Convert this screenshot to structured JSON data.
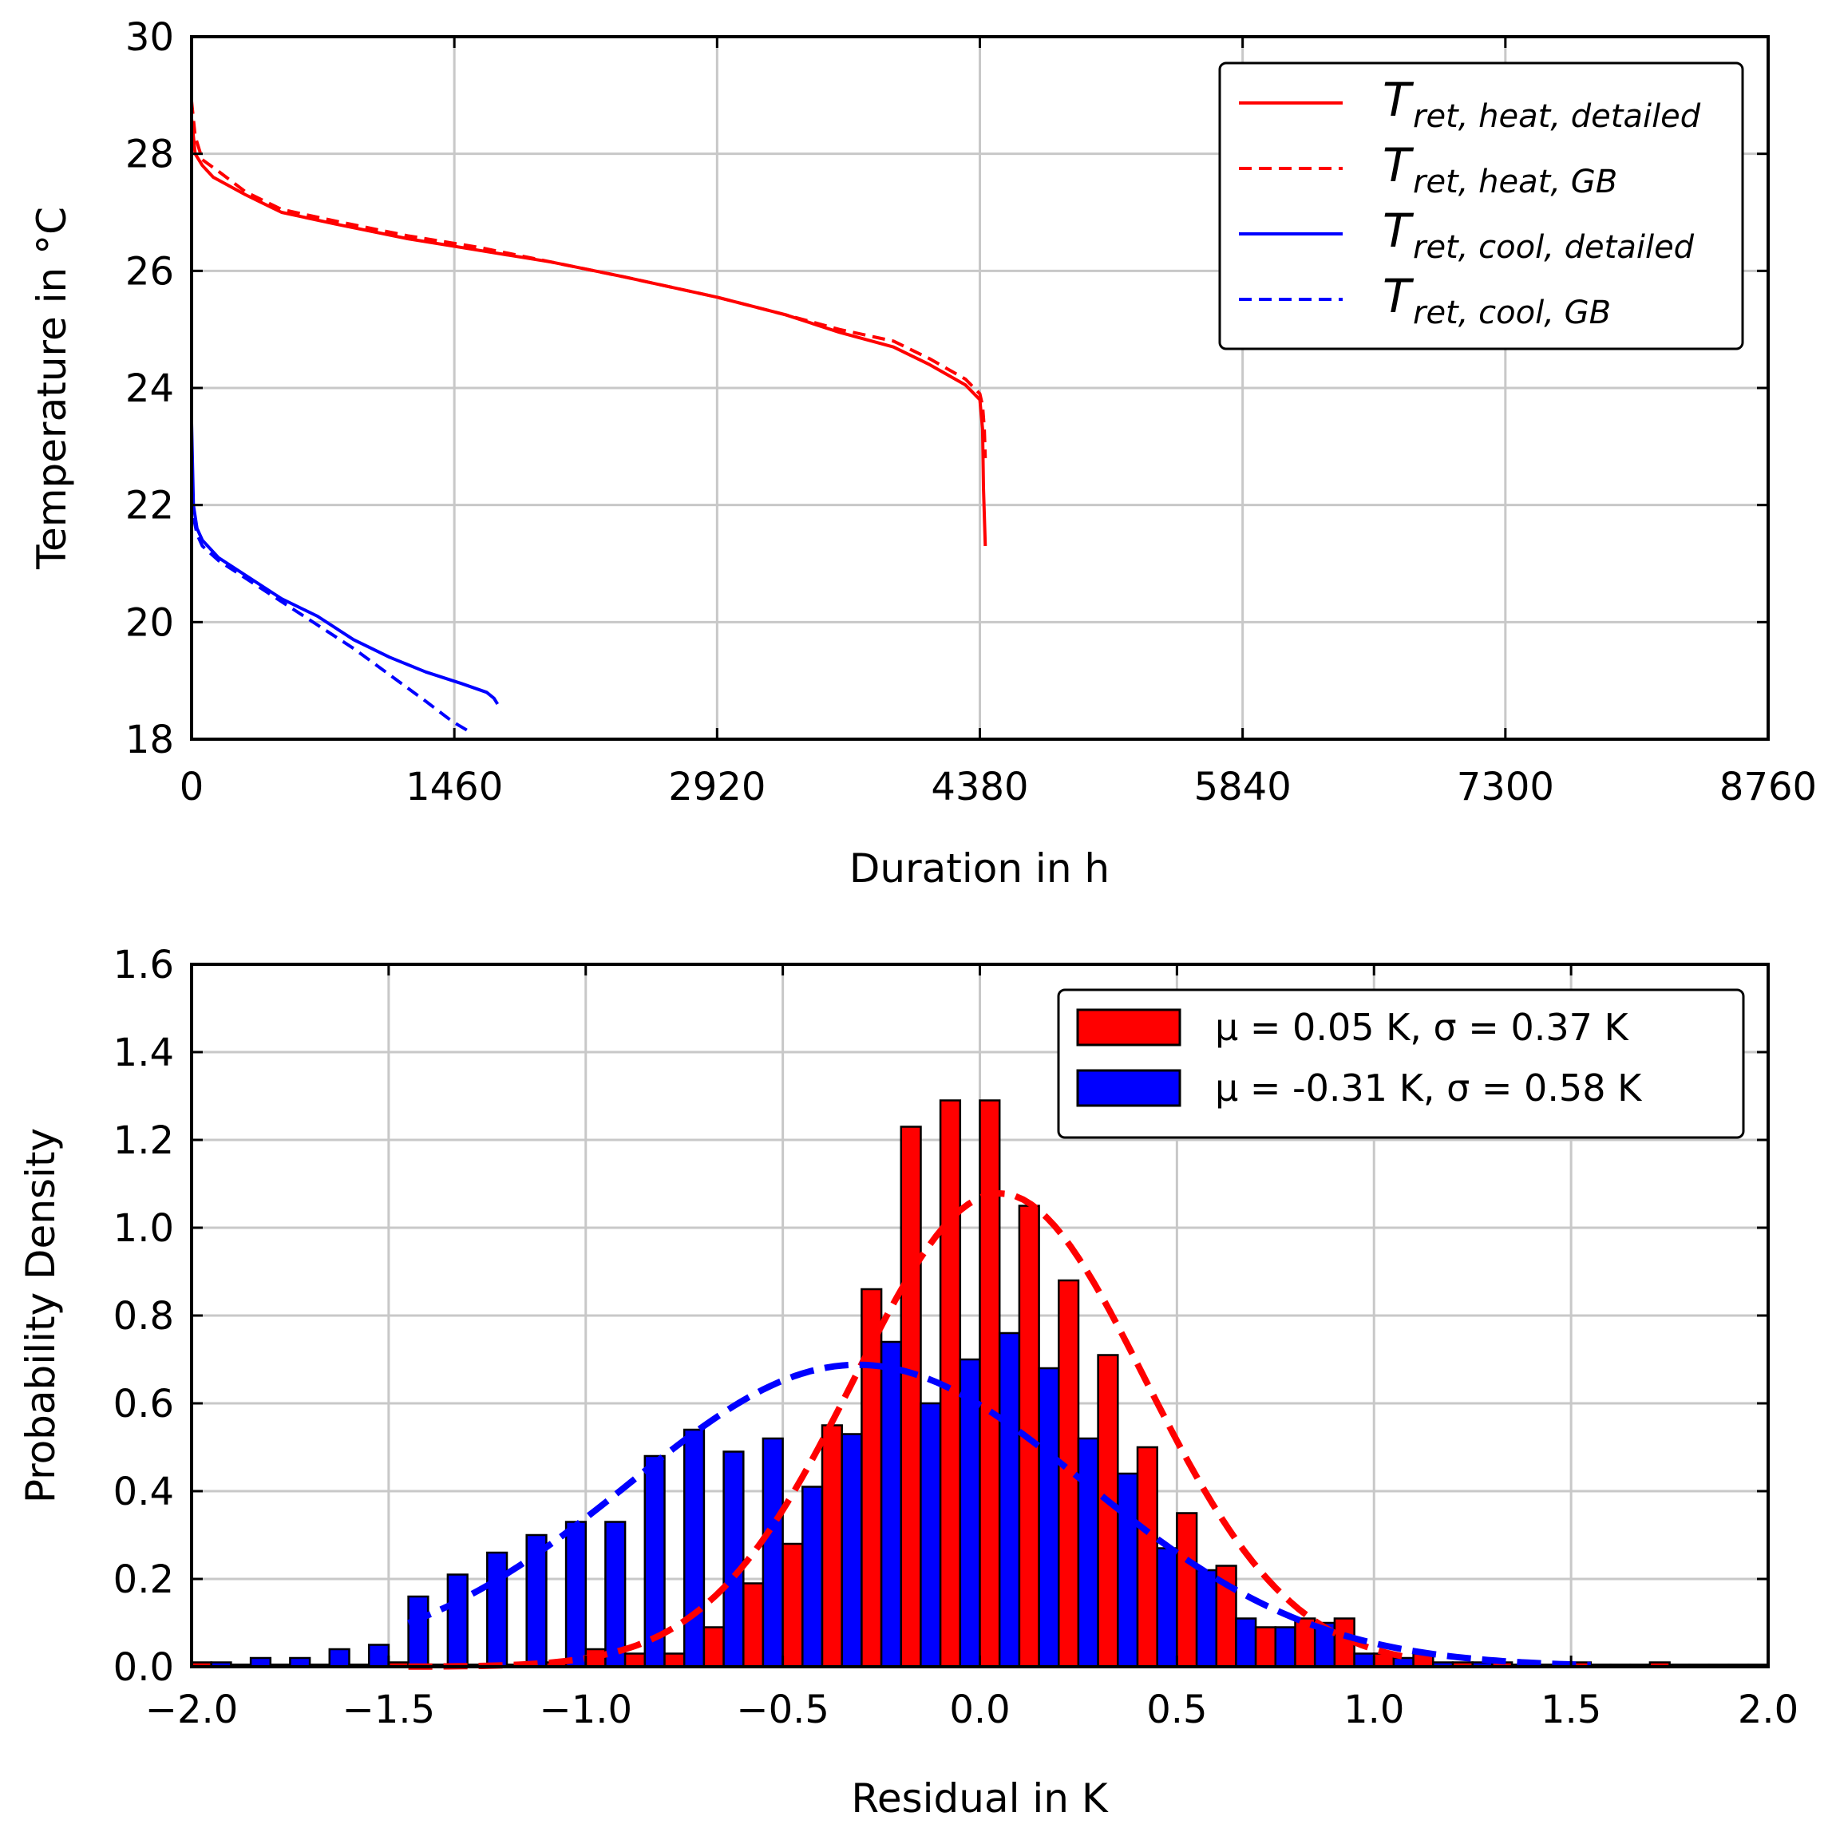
{
  "chart_data": [
    {
      "type": "line",
      "xlabel": "Duration in h",
      "ylabel": "Temperature in °C",
      "xlim": [
        0,
        8760
      ],
      "ylim": [
        18,
        30
      ],
      "xticks": [
        0,
        1460,
        2920,
        4380,
        5840,
        7300,
        8760
      ],
      "yticks": [
        18,
        20,
        22,
        24,
        26,
        28,
        30
      ],
      "grid": true,
      "legend_position": "top-right",
      "series": [
        {
          "name": "T",
          "legend_sub": "ret, heat, detailed",
          "color": "#ff0000",
          "dash": "solid",
          "x": [
            0,
            20,
            60,
            120,
            300,
            500,
            800,
            1200,
            1600,
            2000,
            2400,
            2920,
            3300,
            3600,
            3900,
            4100,
            4300,
            4380,
            4395,
            4400,
            4410
          ],
          "y": [
            28.6,
            28.0,
            27.8,
            27.6,
            27.3,
            27.0,
            26.8,
            26.55,
            26.35,
            26.15,
            25.9,
            25.55,
            25.25,
            24.95,
            24.7,
            24.4,
            24.05,
            23.8,
            23.3,
            22.3,
            21.3
          ]
        },
        {
          "name": "T",
          "legend_sub": "ret, heat, GB",
          "color": "#ff0000",
          "dash": "dashed",
          "x": [
            0,
            20,
            60,
            150,
            300,
            500,
            800,
            1200,
            1600,
            2000,
            2400,
            2920,
            3300,
            3600,
            3900,
            4100,
            4300,
            4380,
            4395,
            4405,
            4410
          ],
          "y": [
            28.9,
            28.3,
            27.9,
            27.7,
            27.35,
            27.05,
            26.85,
            26.6,
            26.4,
            26.15,
            25.9,
            25.55,
            25.25,
            25.0,
            24.8,
            24.5,
            24.15,
            23.9,
            23.7,
            23.3,
            22.8
          ]
        },
        {
          "name": "T",
          "legend_sub": "ret, cool, detailed",
          "color": "#0000ff",
          "dash": "solid",
          "x": [
            0,
            10,
            30,
            60,
            150,
            300,
            500,
            700,
            900,
            1100,
            1300,
            1500,
            1640,
            1680,
            1700
          ],
          "y": [
            23.4,
            22.0,
            21.6,
            21.4,
            21.1,
            20.8,
            20.4,
            20.1,
            19.7,
            19.4,
            19.15,
            18.95,
            18.8,
            18.7,
            18.6
          ]
        },
        {
          "name": "T",
          "legend_sub": "ret, cool, GB",
          "color": "#0000ff",
          "dash": "dashed",
          "x": [
            0,
            10,
            30,
            60,
            150,
            300,
            500,
            700,
            900,
            1100,
            1300,
            1450,
            1560
          ],
          "y": [
            22.8,
            21.8,
            21.5,
            21.3,
            21.05,
            20.75,
            20.35,
            19.95,
            19.55,
            19.1,
            18.65,
            18.3,
            18.1
          ]
        }
      ]
    },
    {
      "type": "bar",
      "xlabel": "Residual in K",
      "ylabel": "Probability Density",
      "xlim": [
        -2.0,
        2.0
      ],
      "ylim": [
        0.0,
        1.6
      ],
      "xticks": [
        "−2.0",
        "−1.5",
        "−1.0",
        "−0.5",
        "0.0",
        "0.5",
        "1.0",
        "1.5",
        "2.0"
      ],
      "xtick_values": [
        -2.0,
        -1.5,
        -1.0,
        -0.5,
        0.0,
        0.5,
        1.0,
        1.5,
        2.0
      ],
      "yticks": [
        "0.0",
        "0.2",
        "0.4",
        "0.6",
        "0.8",
        "1.0",
        "1.2",
        "1.4",
        "1.6"
      ],
      "ytick_values": [
        0.0,
        0.2,
        0.4,
        0.6,
        0.8,
        1.0,
        1.2,
        1.4,
        1.6
      ],
      "grid": true,
      "legend_position": "top-right",
      "bin_centers": [
        -1.95,
        -1.85,
        -1.75,
        -1.65,
        -1.55,
        -1.45,
        -1.35,
        -1.25,
        -1.15,
        -1.05,
        -0.95,
        -0.85,
        -0.75,
        -0.65,
        -0.55,
        -0.45,
        -0.35,
        -0.25,
        -0.15,
        -0.05,
        0.05,
        0.15,
        0.25,
        0.35,
        0.45,
        0.55,
        0.65,
        0.75,
        0.85,
        0.95,
        1.05,
        1.15,
        1.25,
        1.35,
        1.45,
        1.55,
        1.65,
        1.75,
        1.85,
        1.95
      ],
      "series": [
        {
          "name": "μ = 0.05 K, σ = 0.37 K",
          "color": "#ff0000",
          "mu": 0.05,
          "sigma": 0.37,
          "values": [
            0.01,
            0.005,
            0.005,
            0.005,
            0.005,
            0.01,
            0.005,
            0.005,
            0.005,
            0.01,
            0.04,
            0.03,
            0.03,
            0.09,
            0.19,
            0.28,
            0.55,
            0.86,
            1.23,
            1.29,
            1.29,
            1.05,
            0.88,
            0.71,
            0.5,
            0.35,
            0.23,
            0.09,
            0.11,
            0.11,
            0.03,
            0.03,
            0.01,
            0.01,
            0.005,
            0.01,
            0.005,
            0.01,
            0.005,
            0.005
          ]
        },
        {
          "name": "μ = -0.31 K, σ = 0.58 K",
          "color": "#0000ff",
          "mu": -0.31,
          "sigma": 0.58,
          "values": [
            0.01,
            0.02,
            0.02,
            0.04,
            0.05,
            0.16,
            0.21,
            0.26,
            0.3,
            0.33,
            0.33,
            0.48,
            0.54,
            0.49,
            0.52,
            0.41,
            0.53,
            0.74,
            0.6,
            0.7,
            0.76,
            0.68,
            0.52,
            0.44,
            0.27,
            0.22,
            0.11,
            0.09,
            0.1,
            0.03,
            0.02,
            0.01,
            0.01,
            0.005,
            0.005,
            0.005,
            0.005,
            0.005,
            0.005,
            0.005
          ]
        }
      ]
    }
  ]
}
